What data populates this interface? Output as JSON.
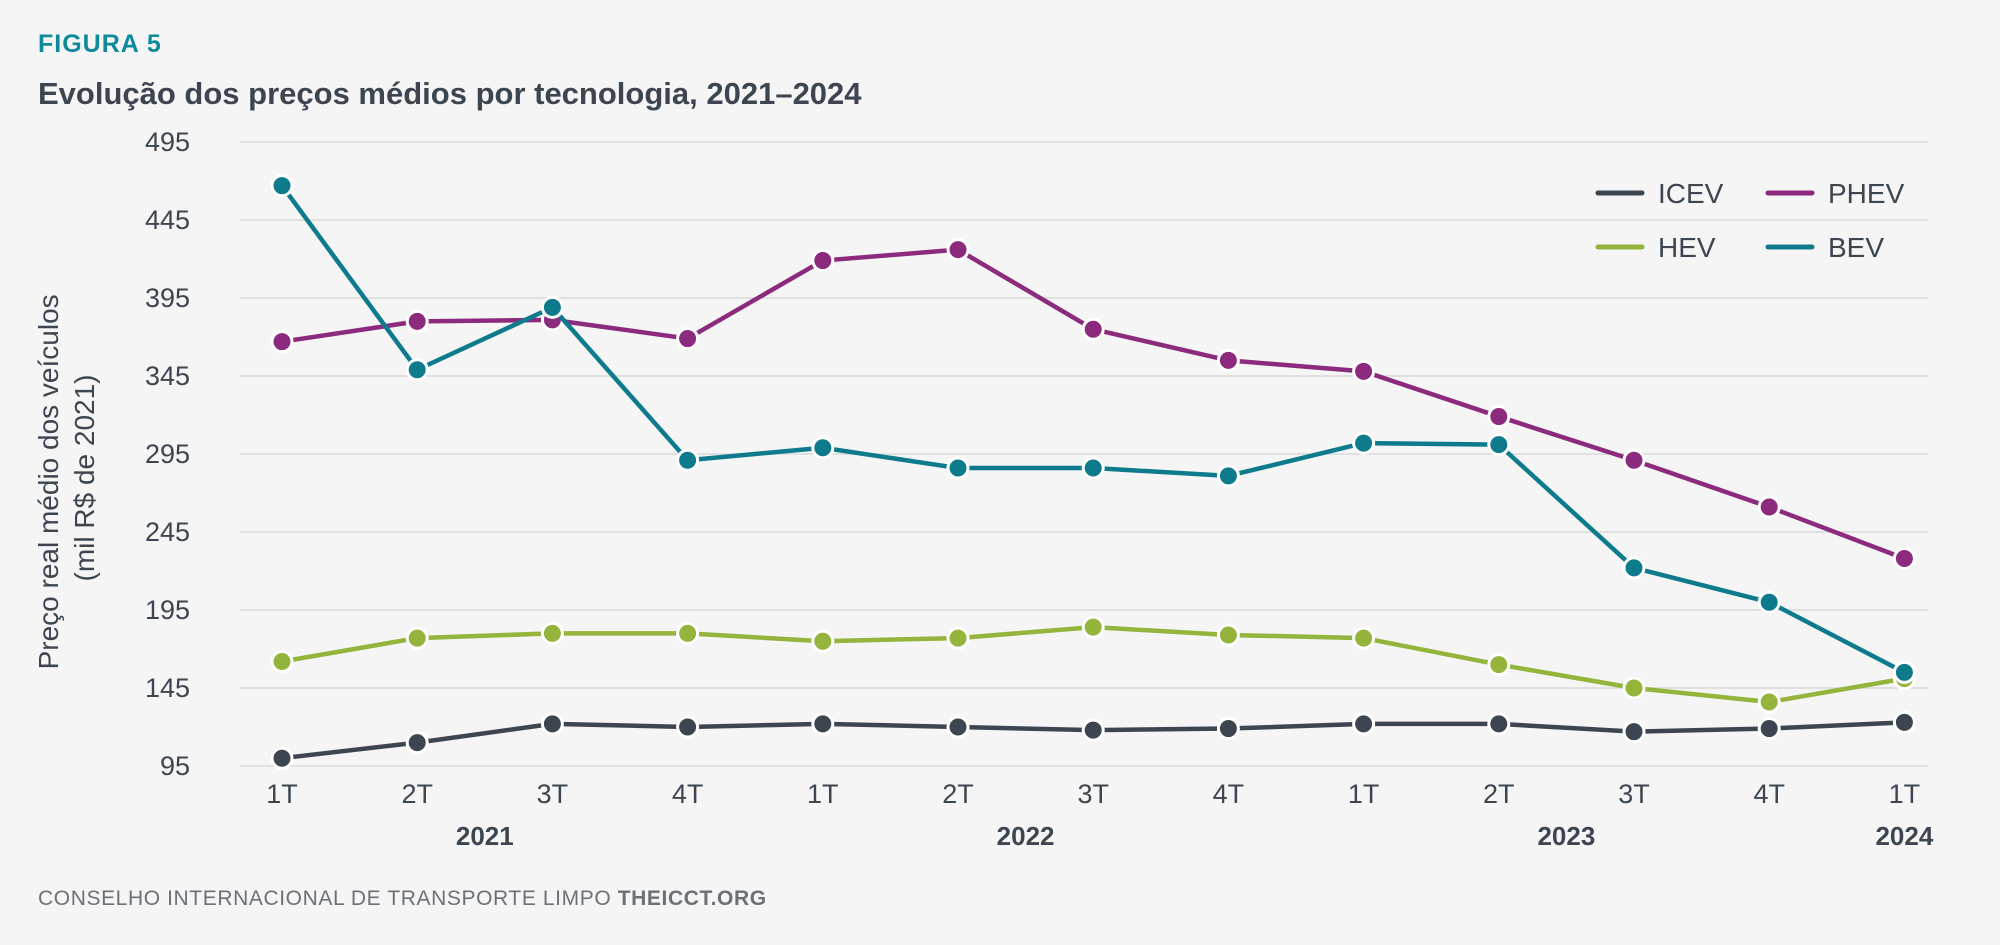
{
  "header": {
    "figure_label": "FIGURA 5",
    "title": "Evolução dos preços médios por tecnologia, 2021–2024"
  },
  "footer": {
    "org": "CONSELHO INTERNACIONAL DE TRANSPORTE LIMPO",
    "site": "THEICCT.ORG"
  },
  "chart_data": {
    "type": "line",
    "title": "Evolução dos preços médios por tecnologia, 2021–2024",
    "ylabel_line1": "Preço real médio dos veículos",
    "ylabel_line2": "(mil R$ de 2021)",
    "ylim": [
      95,
      495
    ],
    "yticks": [
      "95",
      "145",
      "195",
      "245",
      "295",
      "345",
      "395",
      "445",
      "495"
    ],
    "categories": [
      "1T",
      "2T",
      "3T",
      "4T",
      "1T",
      "2T",
      "3T",
      "4T",
      "1T",
      "2T",
      "3T",
      "4T",
      "1T"
    ],
    "years": [
      {
        "label": "2021",
        "start": 0,
        "end": 3
      },
      {
        "label": "2022",
        "start": 4,
        "end": 7
      },
      {
        "label": "2023",
        "start": 8,
        "end": 11
      },
      {
        "label": "2024",
        "start": 12,
        "end": 12
      }
    ],
    "grid": true,
    "legend_position": "top-right",
    "series": [
      {
        "name": "ICEV",
        "color": "#3d4650",
        "values": [
          100,
          110,
          122,
          120,
          122,
          120,
          118,
          119,
          122,
          122,
          117,
          119,
          123
        ]
      },
      {
        "name": "PHEV",
        "color": "#8c2b7e",
        "values": [
          367,
          380,
          381,
          369,
          419,
          426,
          375,
          355,
          348,
          319,
          291,
          261,
          228
        ]
      },
      {
        "name": "HEV",
        "color": "#94b43c",
        "values": [
          162,
          177,
          180,
          180,
          175,
          177,
          184,
          179,
          177,
          160,
          145,
          136,
          151
        ]
      },
      {
        "name": "BEV",
        "color": "#0e7b8c",
        "values": [
          467,
          349,
          389,
          291,
          299,
          286,
          286,
          281,
          302,
          301,
          222,
          200,
          155
        ]
      }
    ]
  }
}
